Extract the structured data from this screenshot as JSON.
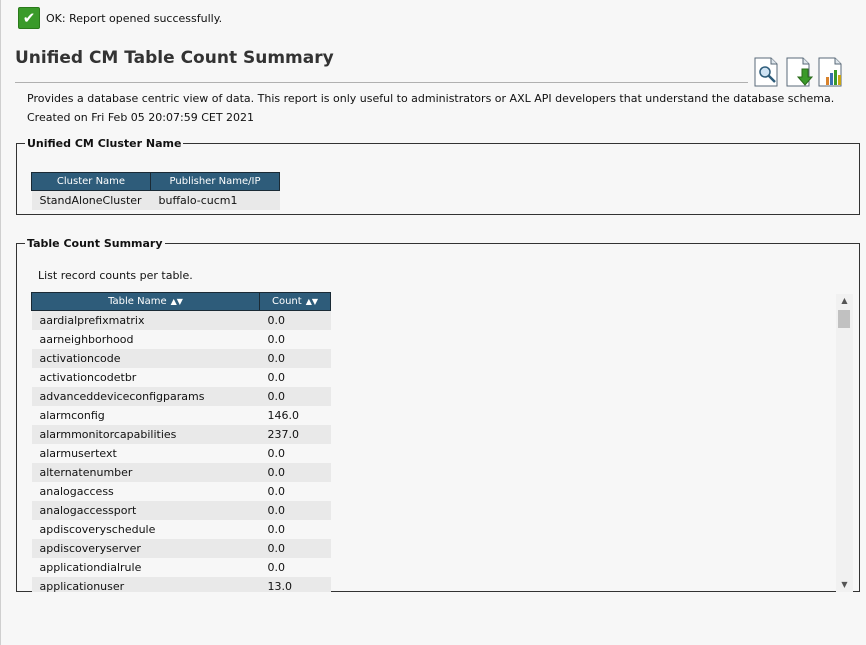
{
  "status": {
    "icon": "check-icon",
    "message": "OK: Report opened successfully."
  },
  "report": {
    "title": "Unified CM Table Count Summary",
    "description": "Provides a database centric view of data. This report is only useful to administrators or AXL API developers that understand the database schema.",
    "created": "Created on Fri Feb 05 20:07:59 CET 2021"
  },
  "actions": [
    {
      "name": "view-report-icon"
    },
    {
      "name": "download-report-icon"
    },
    {
      "name": "chart-report-icon"
    }
  ],
  "cluster": {
    "legend": "Unified CM Cluster Name",
    "headers": [
      "Cluster Name",
      "Publisher Name/IP"
    ],
    "row": [
      "StandAloneCluster",
      "buffalo-cucm1"
    ]
  },
  "summary": {
    "legend": "Table Count Summary",
    "caption": "List record counts per table.",
    "headers": [
      "Table Name",
      "Count"
    ],
    "sort_glyph": "▲▼",
    "rows": [
      [
        "aardialprefixmatrix",
        "0.0"
      ],
      [
        "aarneighborhood",
        "0.0"
      ],
      [
        "activationcode",
        "0.0"
      ],
      [
        "activationcodetbr",
        "0.0"
      ],
      [
        "advanceddeviceconfigparams",
        "0.0"
      ],
      [
        "alarmconfig",
        "146.0"
      ],
      [
        "alarmmonitorcapabilities",
        "237.0"
      ],
      [
        "alarmusertext",
        "0.0"
      ],
      [
        "alternatenumber",
        "0.0"
      ],
      [
        "analogaccess",
        "0.0"
      ],
      [
        "analogaccessport",
        "0.0"
      ],
      [
        "apdiscoveryschedule",
        "0.0"
      ],
      [
        "apdiscoveryserver",
        "0.0"
      ],
      [
        "applicationdialrule",
        "0.0"
      ],
      [
        "applicationuser",
        "13.0"
      ]
    ]
  },
  "colors": {
    "header_bg": "#2e5c7a",
    "stripe": "#e9e9e9",
    "ok_green": "#3a9a2a"
  }
}
